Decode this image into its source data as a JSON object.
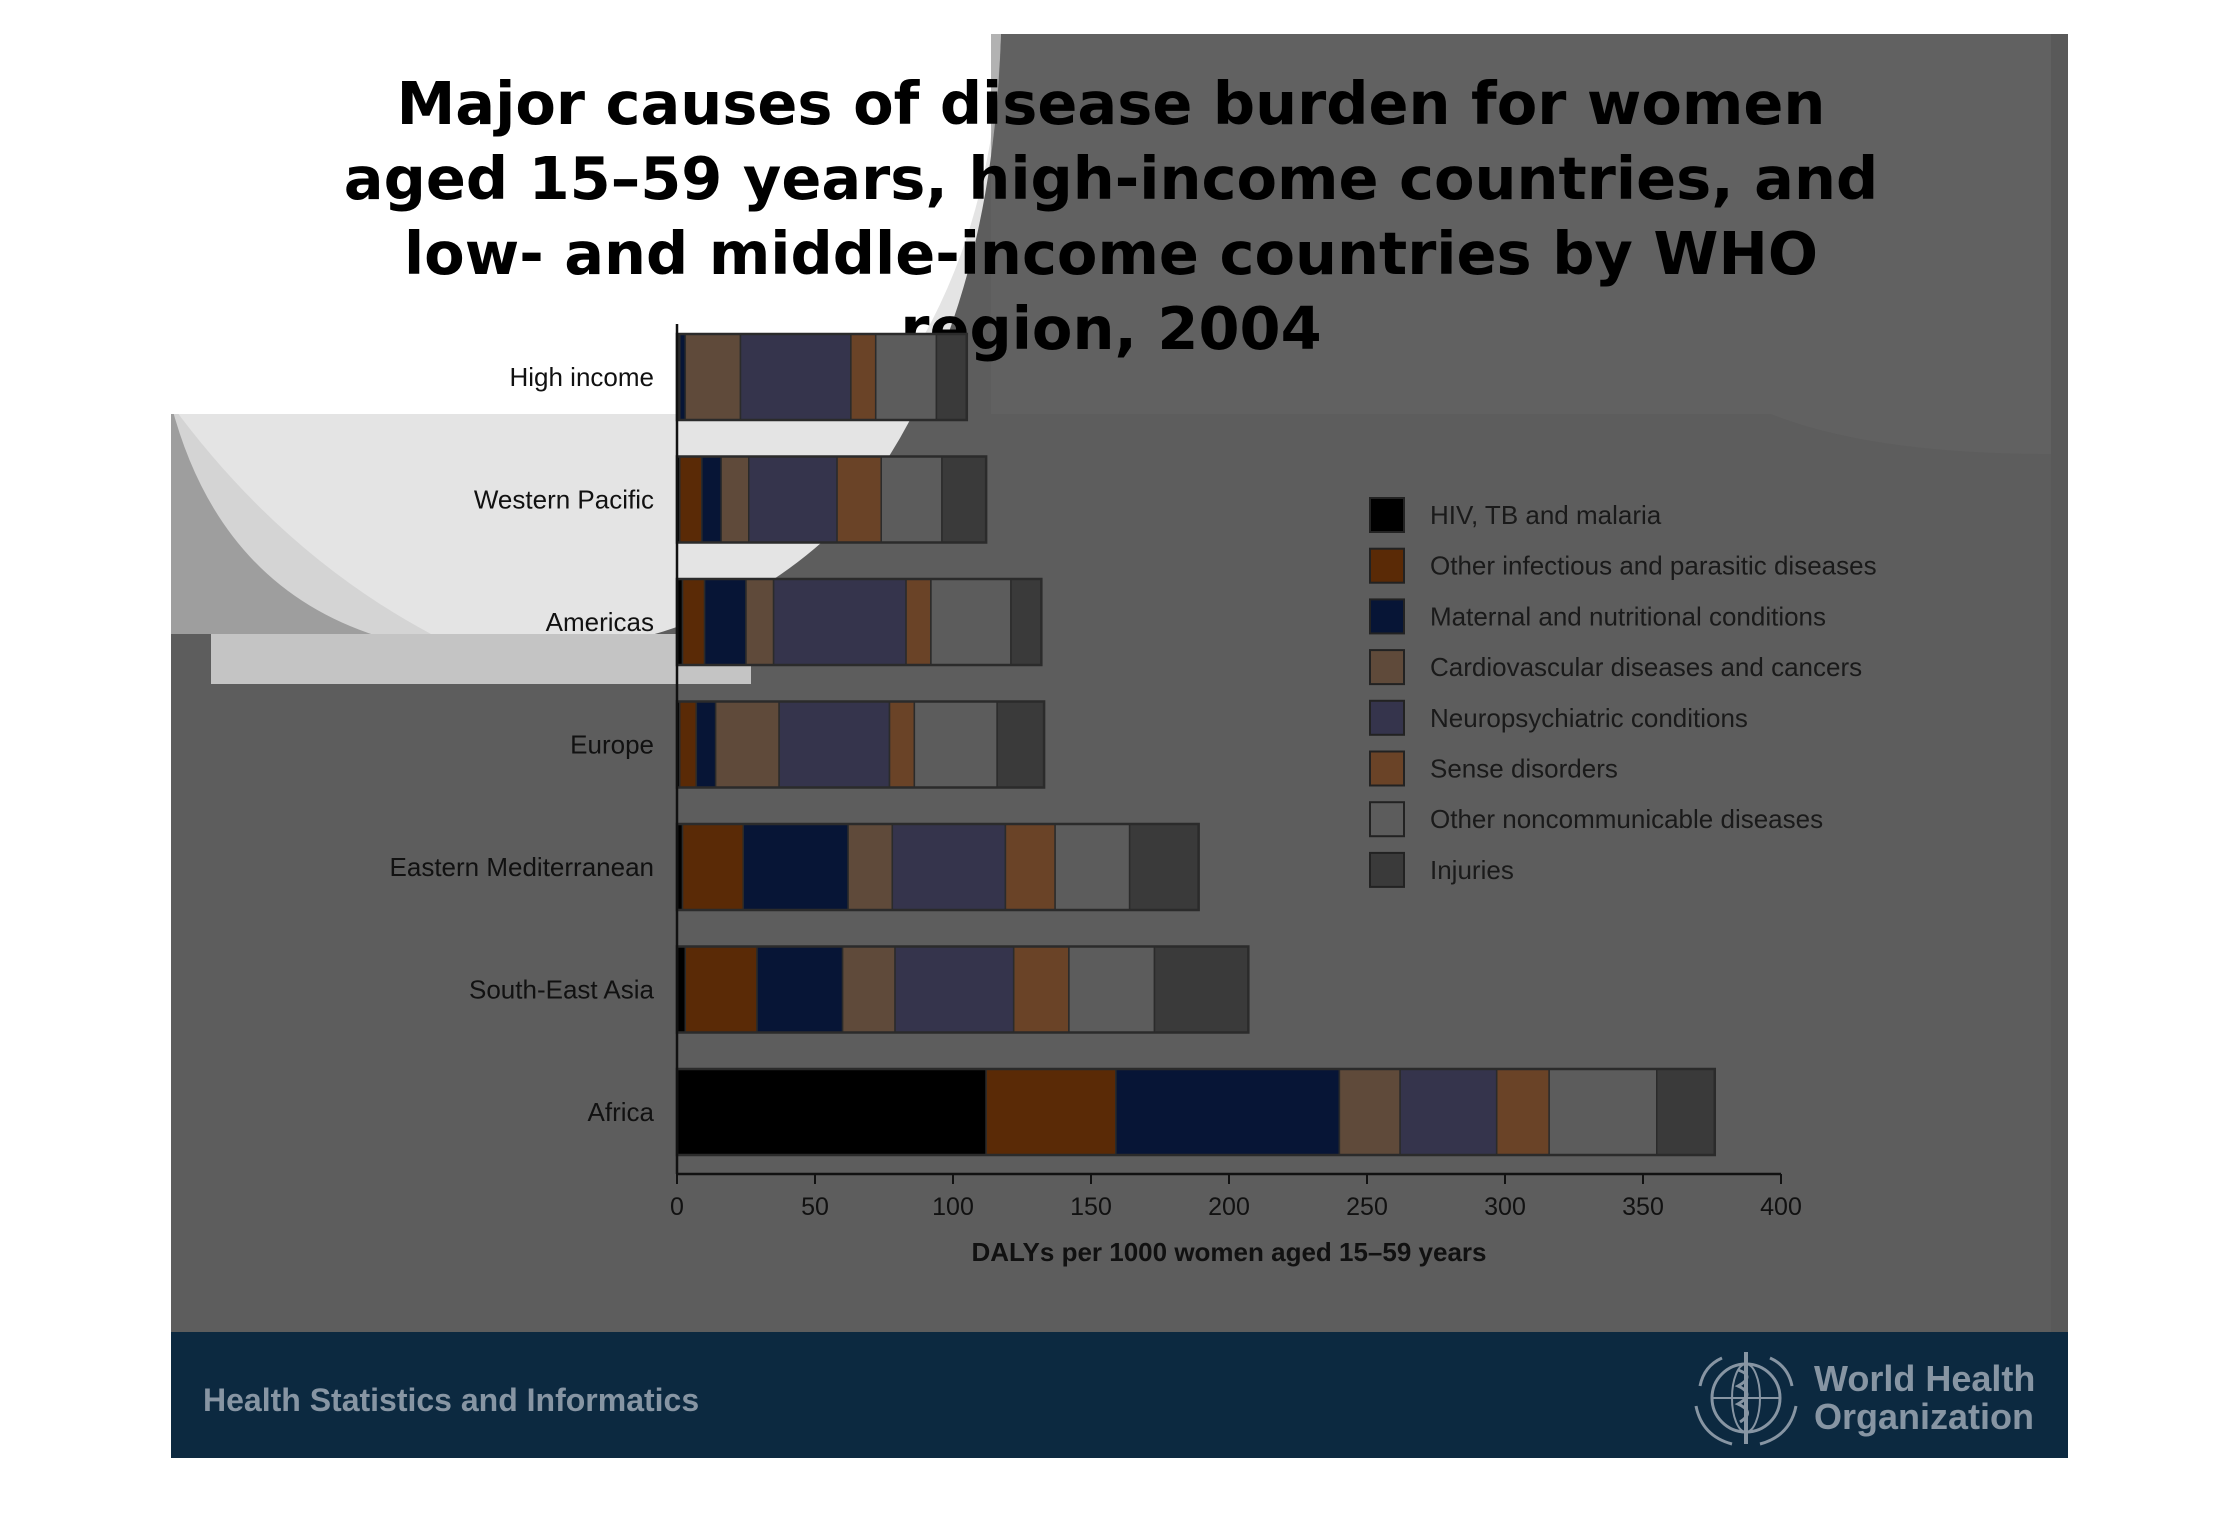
{
  "title": "Major causes of disease burden for women aged 15–59 years, high-income countries, and low- and middle-income countries by WHO region, 2004",
  "footer": {
    "left_text": "Health Statistics and Informatics",
    "org_line1": "World Health",
    "org_line2": "Organization"
  },
  "colors": {
    "slide_background": "#5d5d5d",
    "footer_background": "#0c2940",
    "footer_text": "#8795a3"
  },
  "chart_data": {
    "type": "bar",
    "orientation": "horizontal",
    "stacked": true,
    "title": "Major causes of disease burden for women aged 15–59 years, high-income countries, and low- and middle-income countries by WHO region, 2004",
    "categories": [
      "High income",
      "Western Pacific",
      "Americas",
      "Europe",
      "Eastern Mediterranean",
      "South-East Asia",
      "Africa"
    ],
    "xlabel": "DALYs per 1000 women aged 15–59 years",
    "ylabel": "",
    "xlim": [
      0,
      400
    ],
    "xticks": [
      "0",
      "50",
      "100",
      "150",
      "200",
      "250",
      "300",
      "350",
      "400"
    ],
    "grid": false,
    "legend_position": "right",
    "series": [
      {
        "name": "HIV, TB and malaria",
        "color": "#000000",
        "values": [
          0.5,
          1,
          2,
          1,
          2,
          3,
          112
        ]
      },
      {
        "name": "Other infectious and parasitic diseases",
        "color": "#5a2a06",
        "values": [
          0.5,
          8,
          8,
          6,
          22,
          26,
          47
        ]
      },
      {
        "name": "Maternal and nutritional conditions",
        "color": "#071536",
        "values": [
          2,
          7,
          15,
          7,
          38,
          31,
          81
        ]
      },
      {
        "name": "Cardiovascular diseases and cancers",
        "color": "#5f4a3a",
        "values": [
          20,
          10,
          10,
          23,
          16,
          19,
          22
        ]
      },
      {
        "name": "Neuropsychiatric conditions",
        "color": "#35344c",
        "values": [
          40,
          32,
          48,
          40,
          41,
          43,
          35
        ]
      },
      {
        "name": "Sense disorders",
        "color": "#6a4327",
        "values": [
          9,
          16,
          9,
          9,
          18,
          20,
          19
        ]
      },
      {
        "name": "Other noncommunicable diseases",
        "color": "#5c5c5c",
        "values": [
          22,
          22,
          29,
          30,
          27,
          31,
          39
        ]
      },
      {
        "name": "Injuries",
        "color": "#3a3a3a",
        "values": [
          11,
          16,
          11,
          17,
          25,
          34,
          21
        ]
      }
    ]
  }
}
